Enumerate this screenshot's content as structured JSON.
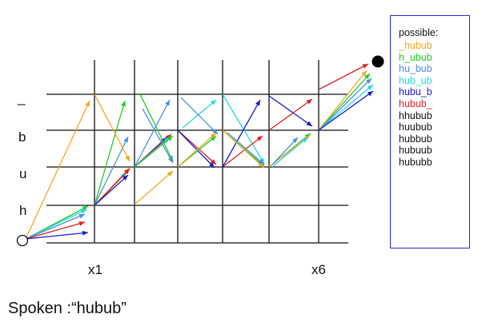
{
  "rows": [
    "_",
    "b",
    "u",
    "h"
  ],
  "x_labels": [
    "x1",
    "x6"
  ],
  "legend": {
    "title": "possible:",
    "items": [
      {
        "text": "_hubub",
        "color": "#f5a623"
      },
      {
        "text": "h_ubub",
        "color": "#22cc22"
      },
      {
        "text": "hu_bub",
        "color": "#4a90e2"
      },
      {
        "text": "hub_ub",
        "color": "#22d8e8"
      },
      {
        "text": "hubu_b",
        "color": "#1a1acc"
      },
      {
        "text": "hubub_",
        "color": "#e02020"
      },
      {
        "text": "hhubub",
        "color": "#111111"
      },
      {
        "text": "huubub",
        "color": "#111111"
      },
      {
        "text": "hubbub",
        "color": "#111111"
      },
      {
        "text": "hubuub",
        "color": "#111111"
      },
      {
        "text": "hububb",
        "color": "#111111"
      }
    ]
  },
  "caption": "Spoken :“hubub”",
  "colors": {
    "orange": "#f5a623",
    "green": "#22cc22",
    "lightblue": "#4a90e2",
    "cyan": "#22d8e8",
    "blue": "#1a1acc",
    "red": "#e02020"
  }
}
